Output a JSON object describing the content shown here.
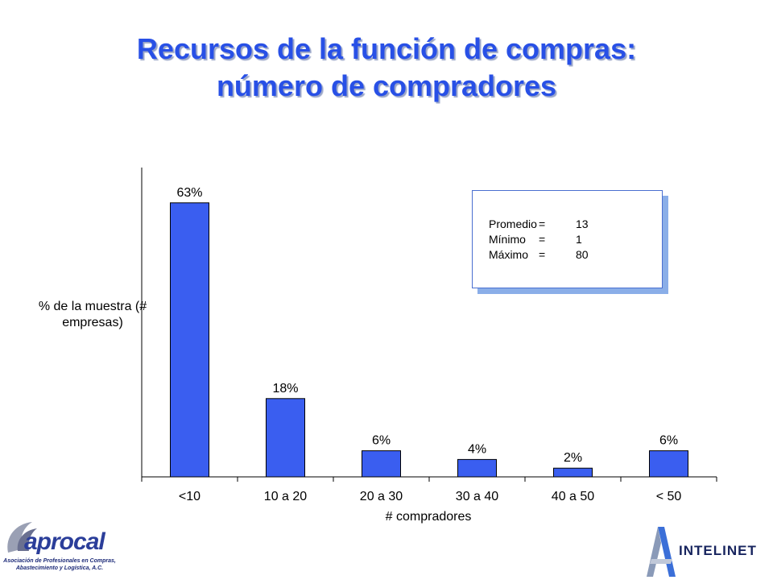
{
  "title": {
    "line1": "Recursos de la función de compras:",
    "line2": "número de compradores"
  },
  "chart_data": {
    "type": "bar",
    "categories": [
      "<10",
      "10 a 20",
      "20 a 30",
      "30 a 40",
      "40 a 50",
      "< 50"
    ],
    "values": [
      63,
      18,
      6,
      4,
      2,
      6
    ],
    "data_labels": [
      "63%",
      "18%",
      "6%",
      "4%",
      "2%",
      "6%"
    ],
    "xlabel": "# compradores",
    "ylabel": "% de la muestra (# empresas)",
    "ylim": [
      0,
      70
    ],
    "grid": false,
    "colors": {
      "bar": "#3a5ef0",
      "bar_border": "#000000",
      "axis": "#000000"
    }
  },
  "stats": {
    "rows": [
      {
        "label": "Promedio",
        "eq": "=",
        "value": "13"
      },
      {
        "label": "Mínimo",
        "eq": "=",
        "value": "1"
      },
      {
        "label": "Máximo",
        "eq": "=",
        "value": "80"
      }
    ]
  },
  "logos": {
    "aprocal": {
      "name": "aprocal",
      "subtitle": "Asociación de Profesionales en Compras, Abastecimiento y Logística, A.C."
    },
    "intelinet": {
      "name": "INTELINET"
    }
  }
}
